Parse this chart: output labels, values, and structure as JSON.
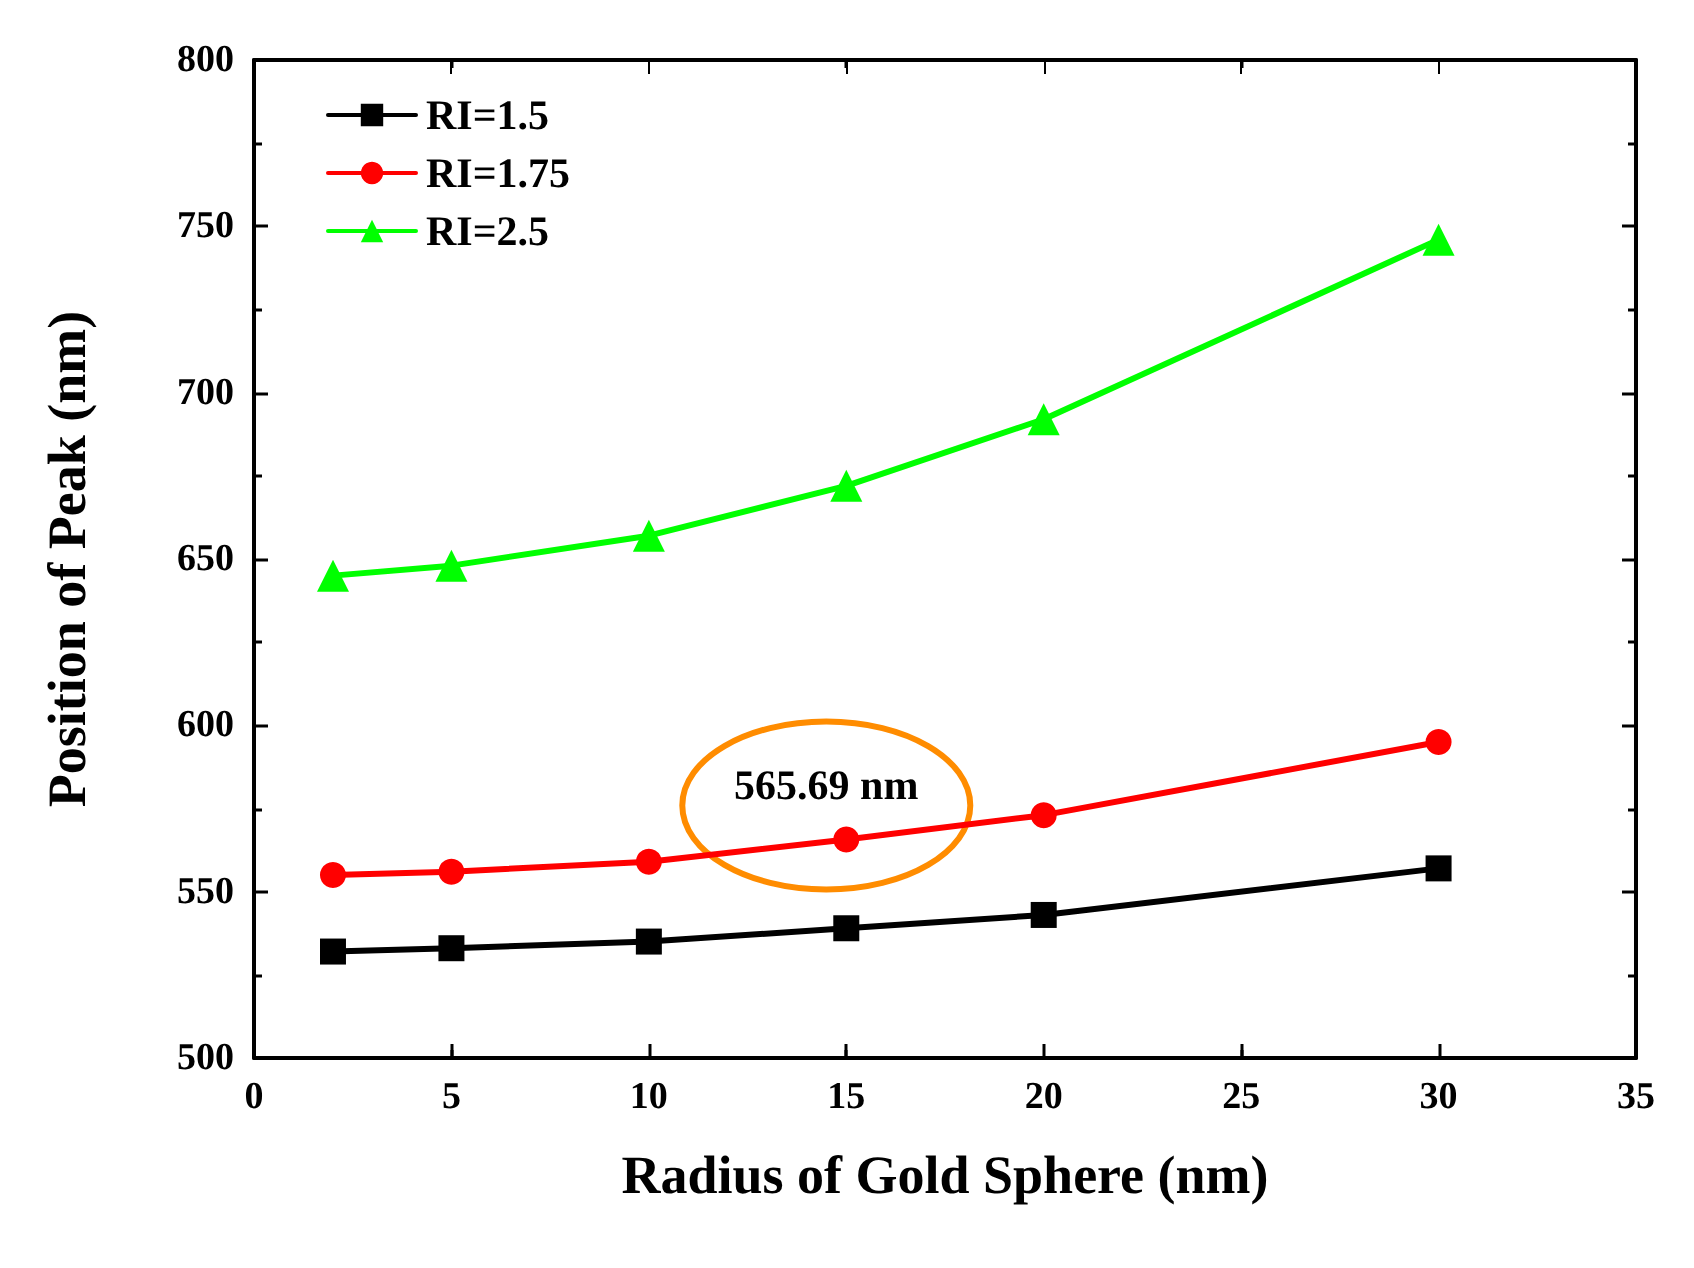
{
  "chart_data": {
    "type": "line",
    "xlabel": "Radius of Gold Sphere (nm)",
    "ylabel": "Position of Peak (nm)",
    "x": [
      2,
      5,
      10,
      15,
      20,
      30
    ],
    "series": [
      {
        "name": "RI=1.5",
        "color": "#000000",
        "marker": "square",
        "values": [
          532,
          533,
          535,
          539,
          543,
          557
        ]
      },
      {
        "name": "RI=1.75",
        "color": "#ff0000",
        "marker": "circle",
        "values": [
          555,
          556,
          559,
          565.69,
          573,
          595
        ]
      },
      {
        "name": "RI=2.5",
        "color": "#00ff00",
        "marker": "triangle",
        "values": [
          645,
          648,
          657,
          672,
          692,
          746
        ]
      }
    ],
    "xlim": [
      0,
      35
    ],
    "xticks": [
      0,
      5,
      10,
      15,
      20,
      25,
      30,
      35
    ],
    "ylim": [
      500,
      800
    ],
    "yticks": [
      500,
      550,
      600,
      650,
      700,
      750,
      800
    ],
    "annotations": [
      {
        "text": "565.69 nm",
        "x": 15,
        "y": 565.69
      }
    ],
    "legend": "top left",
    "grid": false,
    "line_style": "solid"
  }
}
